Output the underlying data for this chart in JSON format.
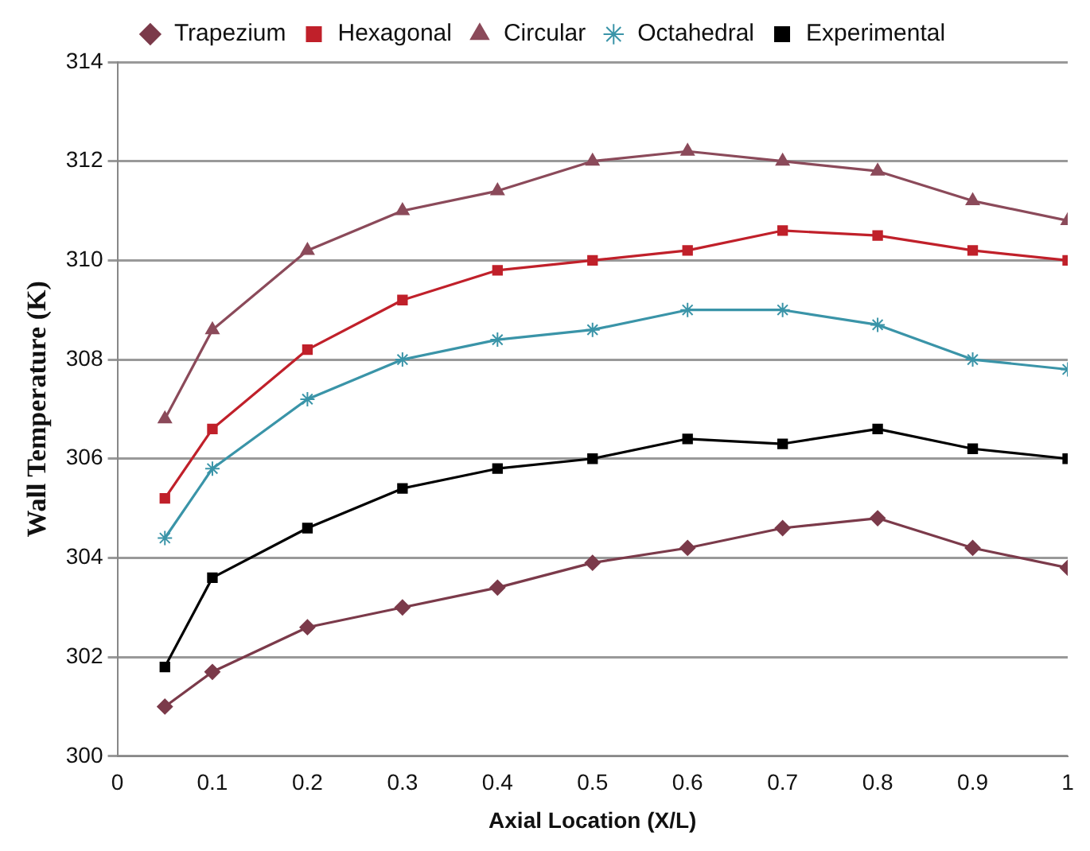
{
  "chart_data": {
    "type": "line",
    "xlabel": "Axial Location (X/L)",
    "ylabel": "Wall Temperature (K)",
    "x": [
      0.05,
      0.1,
      0.2,
      0.3,
      0.4,
      0.5,
      0.6,
      0.7,
      0.8,
      0.9,
      1.0
    ],
    "xlim": [
      0,
      1
    ],
    "xticks": [
      0,
      0.1,
      0.2,
      0.3,
      0.4,
      0.5,
      0.6,
      0.7,
      0.8,
      0.9,
      1
    ],
    "ylim": [
      300,
      314
    ],
    "yticks": [
      300,
      302,
      304,
      306,
      308,
      310,
      312,
      314
    ],
    "grid": "y",
    "legend": "top",
    "line_style": "solid",
    "series": [
      {
        "name": "Trapezium",
        "color": "#7b3a4a",
        "marker": "diamond",
        "values": [
          301.0,
          301.7,
          302.6,
          303.0,
          303.4,
          303.9,
          304.2,
          304.6,
          304.8,
          304.2,
          303.8
        ]
      },
      {
        "name": "Hexagonal",
        "color": "#c0202a",
        "marker": "square",
        "values": [
          305.2,
          306.6,
          308.2,
          309.2,
          309.8,
          310.0,
          310.2,
          310.6,
          310.5,
          310.2,
          310.0
        ]
      },
      {
        "name": "Circular",
        "color": "#8b4a5a",
        "marker": "triangle",
        "values": [
          306.8,
          308.6,
          310.2,
          311.0,
          311.4,
          312.0,
          312.2,
          312.0,
          311.8,
          311.2,
          310.8
        ]
      },
      {
        "name": "Octahedral",
        "color": "#3a94a8",
        "marker": "cross",
        "values": [
          304.4,
          305.8,
          307.2,
          308.0,
          308.4,
          308.6,
          309.0,
          309.0,
          308.7,
          308.0,
          307.8
        ]
      },
      {
        "name": "Experimental",
        "color": "#000000",
        "marker": "square",
        "values": [
          301.8,
          303.6,
          304.6,
          305.4,
          305.8,
          306.0,
          306.4,
          306.3,
          306.6,
          306.2,
          306.0
        ]
      }
    ]
  }
}
